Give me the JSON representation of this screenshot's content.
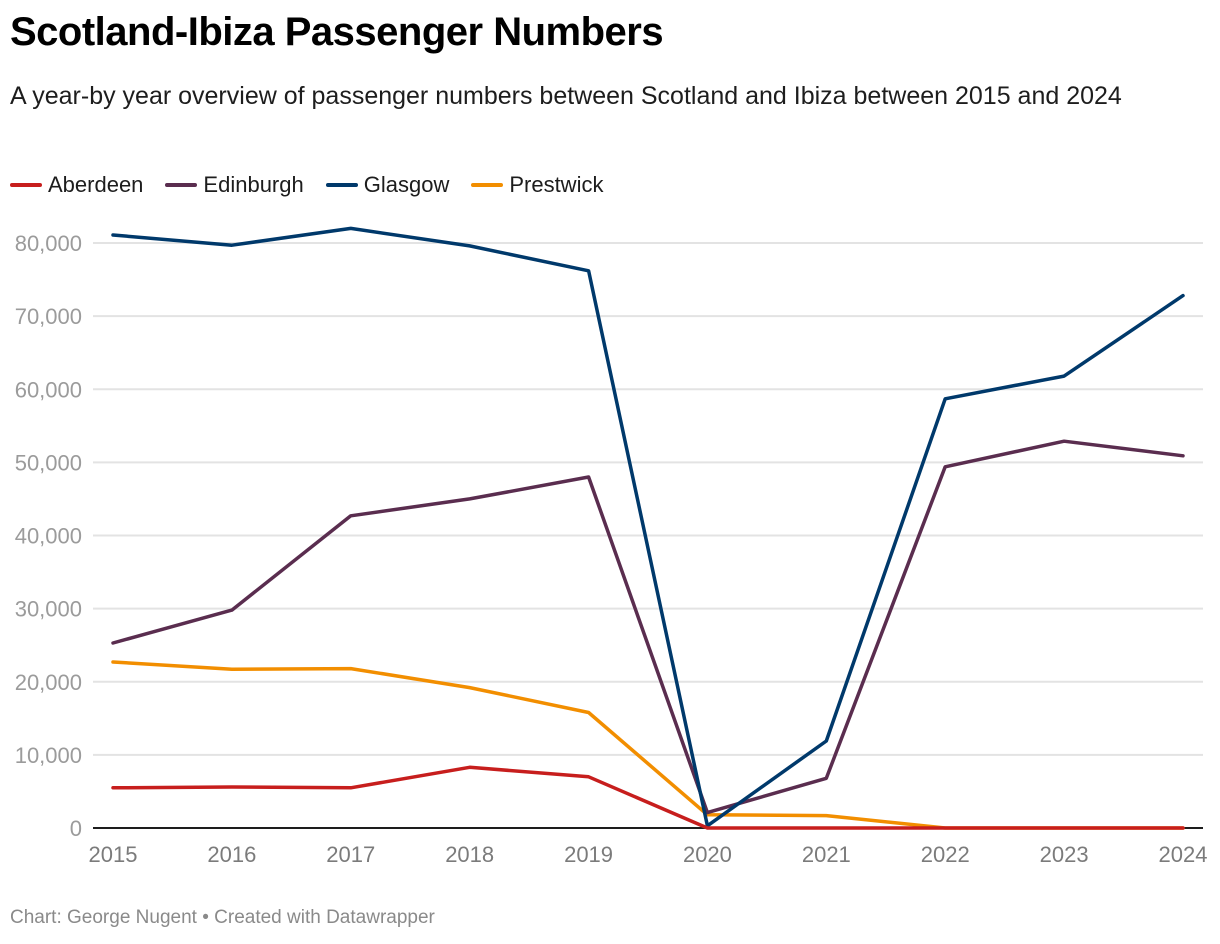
{
  "header": {
    "title": "Scotland-Ibiza Passenger Numbers",
    "subtitle": "A year-by year overview of passenger numbers between Scotland and Ibiza between 2015 and 2024"
  },
  "footer": {
    "text": "Chart: George Nugent • Created with Datawrapper"
  },
  "chart_data": {
    "type": "line",
    "title": "Scotland-Ibiza Passenger Numbers",
    "subtitle": "A year-by year overview of passenger numbers between Scotland and Ibiza between 2015 and 2024",
    "xlabel": "",
    "ylabel": "",
    "x": [
      "2015",
      "2016",
      "2017",
      "2018",
      "2019",
      "2020",
      "2021",
      "2022",
      "2023",
      "2024"
    ],
    "ylim": [
      0,
      80000
    ],
    "yticks": [
      0,
      10000,
      20000,
      30000,
      40000,
      50000,
      60000,
      70000,
      80000
    ],
    "ytick_labels": [
      "0",
      "10,000",
      "20,000",
      "30,000",
      "40,000",
      "50,000",
      "60,000",
      "70,000",
      "80,000"
    ],
    "grid": true,
    "legend_position": "top-left",
    "series": [
      {
        "name": "Aberdeen",
        "color": "#c71e1d",
        "values": [
          5500,
          5600,
          5500,
          8300,
          7000,
          0,
          0,
          0,
          0,
          0
        ]
      },
      {
        "name": "Edinburgh",
        "color": "#5a2d4f",
        "values": [
          25300,
          29800,
          42700,
          45000,
          48000,
          2100,
          6800,
          49400,
          52900,
          50900
        ]
      },
      {
        "name": "Glasgow",
        "color": "#00396b",
        "values": [
          81100,
          79700,
          82000,
          79600,
          76200,
          300,
          11900,
          58700,
          61800,
          72800
        ]
      },
      {
        "name": "Prestwick",
        "color": "#f28e00",
        "values": [
          22700,
          21700,
          21800,
          19200,
          15800,
          1800,
          1700,
          0,
          0,
          0
        ]
      }
    ]
  }
}
